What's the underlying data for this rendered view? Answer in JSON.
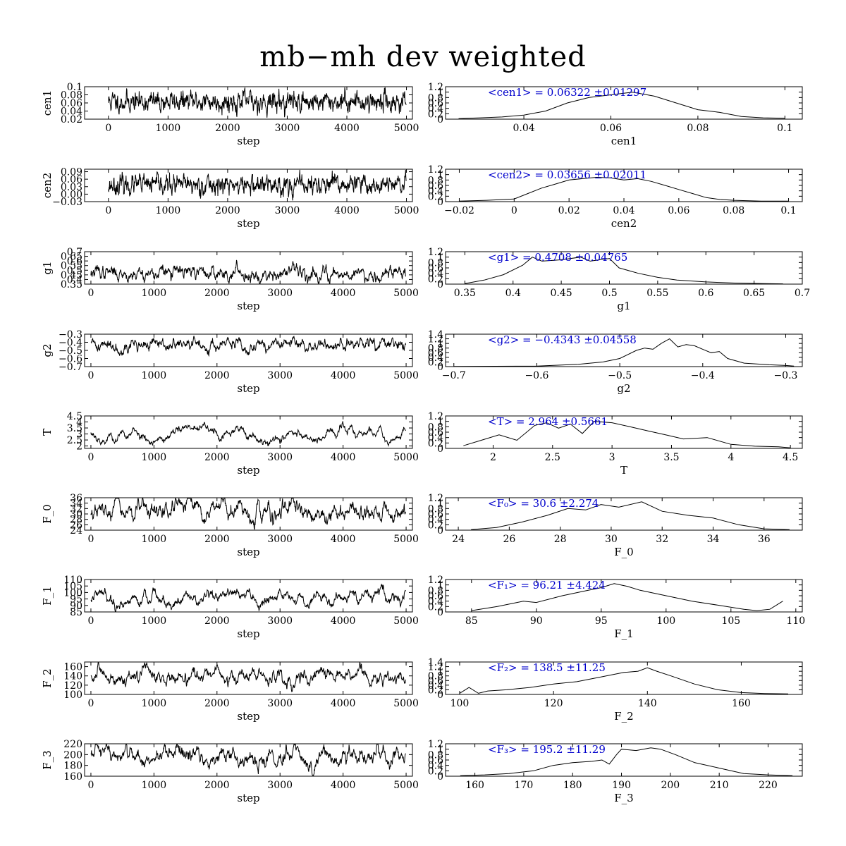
{
  "title": "mb−mh dev weighted",
  "colors": {
    "axes": "#000000",
    "annotation": "#0000cc",
    "line": "#000000"
  },
  "chart_data": [
    {
      "type": "line",
      "panel": "trace",
      "param": "cen1",
      "ylabel": "cen1",
      "xlabel": "step",
      "xlim": [
        -400,
        5100
      ],
      "xticks": [
        0,
        1000,
        2000,
        3000,
        4000,
        5000
      ],
      "ylim": [
        0.02,
        0.1
      ],
      "yticks": [
        0.02,
        0.04,
        0.06,
        0.08,
        0.1
      ],
      "yticklabels": [
        "0.02",
        "0.04",
        "0.06",
        "0.08",
        "0.1"
      ],
      "series": [
        {
          "n": 5000,
          "mean": 0.06322,
          "sigma": 0.013,
          "ar": 0.6,
          "seed": 11
        }
      ]
    },
    {
      "type": "line",
      "panel": "hist",
      "param": "cen1",
      "xlabel": "cen1",
      "xlim": [
        0.022,
        0.104
      ],
      "xticks": [
        0.04,
        0.06,
        0.08,
        0.1
      ],
      "xticklabels": [
        "0.04",
        "0.06",
        "0.08",
        "0.1"
      ],
      "ylim": [
        0,
        1.2
      ],
      "yticks": [
        0,
        0.2,
        0.4,
        0.6,
        0.8,
        1,
        1.2
      ],
      "yticklabels": [
        "0",
        "0.2",
        "0.4",
        "0.6",
        "0.8",
        "1",
        "1.2"
      ],
      "annotation": "<cen1> = 0.06322 ±0.01297",
      "x": [
        0.025,
        0.03,
        0.035,
        0.04,
        0.045,
        0.05,
        0.055,
        0.06,
        0.065,
        0.07,
        0.075,
        0.08,
        0.085,
        0.09,
        0.095,
        0.1
      ],
      "y": [
        0.02,
        0.05,
        0.08,
        0.15,
        0.3,
        0.6,
        0.8,
        0.9,
        1.0,
        0.85,
        0.6,
        0.35,
        0.25,
        0.1,
        0.05,
        0.03
      ]
    },
    {
      "type": "line",
      "panel": "trace",
      "param": "cen2",
      "ylabel": "cen2",
      "xlabel": "step",
      "xlim": [
        -400,
        5100
      ],
      "xticks": [
        0,
        1000,
        2000,
        3000,
        4000,
        5000
      ],
      "ylim": [
        -0.03,
        0.1
      ],
      "yticks": [
        -0.03,
        0,
        0.03,
        0.06,
        0.09
      ],
      "yticklabels": [
        "−0.03",
        "0.00",
        "0.03",
        "0.06",
        "0.09"
      ],
      "series": [
        {
          "n": 5000,
          "mean": 0.03656,
          "sigma": 0.02,
          "ar": 0.6,
          "seed": 23
        }
      ]
    },
    {
      "type": "line",
      "panel": "hist",
      "param": "cen2",
      "xlabel": "cen2",
      "xlim": [
        -0.025,
        0.105
      ],
      "xticks": [
        -0.02,
        0,
        0.02,
        0.04,
        0.06,
        0.08,
        0.1
      ],
      "xticklabels": [
        "−0.02",
        "0",
        "0.02",
        "0.04",
        "0.06",
        "0.08",
        "0.1"
      ],
      "ylim": [
        0,
        1.2
      ],
      "yticks": [
        0,
        0.2,
        0.4,
        0.6,
        0.8,
        1,
        1.2
      ],
      "yticklabels": [
        "0",
        "0.2",
        "0.4",
        "0.6",
        "0.8",
        "1",
        "1.2"
      ],
      "annotation": "<cen2> = 0.03656 ±0.02011",
      "x": [
        -0.02,
        -0.01,
        0.0,
        0.005,
        0.01,
        0.015,
        0.02,
        0.025,
        0.03,
        0.035,
        0.04,
        0.045,
        0.05,
        0.055,
        0.06,
        0.065,
        0.07,
        0.075,
        0.08,
        0.09,
        0.1
      ],
      "y": [
        0.02,
        0.05,
        0.1,
        0.3,
        0.5,
        0.65,
        0.8,
        0.85,
        0.9,
        0.88,
        0.8,
        0.85,
        0.75,
        0.6,
        0.45,
        0.3,
        0.15,
        0.08,
        0.05,
        0.02,
        0.02
      ]
    },
    {
      "type": "line",
      "panel": "trace",
      "param": "g1",
      "ylabel": "g1",
      "xlabel": "step",
      "xlim": [
        -100,
        5100
      ],
      "xticks": [
        0,
        1000,
        2000,
        3000,
        4000,
        5000
      ],
      "ylim": [
        0.35,
        0.7
      ],
      "yticks": [
        0.35,
        0.4,
        0.45,
        0.5,
        0.55,
        0.6,
        0.65,
        0.7
      ],
      "yticklabels": [
        "0.35",
        "0.4",
        "0.45",
        "0.5",
        "0.55",
        "0.6",
        "0.65",
        "0.7"
      ],
      "series": [
        {
          "n": 5000,
          "mean": 0.4708,
          "sigma": 0.045,
          "ar": 0.85,
          "seed": 37
        }
      ]
    },
    {
      "type": "line",
      "panel": "hist",
      "param": "g1",
      "xlabel": "g1",
      "xlim": [
        0.33,
        0.7
      ],
      "xticks": [
        0.35,
        0.4,
        0.45,
        0.5,
        0.55,
        0.6,
        0.65,
        0.7
      ],
      "xticklabels": [
        "0.35",
        "0.4",
        "0.45",
        "0.5",
        "0.55",
        "0.6",
        "0.65",
        "0.7"
      ],
      "ylim": [
        0,
        1.2
      ],
      "yticks": [
        0,
        0.2,
        0.4,
        0.6,
        0.8,
        1,
        1.2
      ],
      "yticklabels": [
        "0",
        "0.2",
        "0.4",
        "0.6",
        "0.8",
        "1",
        "1.2"
      ],
      "annotation": "<g1> = 0.4708 ±0.04765",
      "x": [
        0.35,
        0.37,
        0.39,
        0.41,
        0.42,
        0.43,
        0.45,
        0.47,
        0.48,
        0.5,
        0.51,
        0.53,
        0.55,
        0.57,
        0.6,
        0.63,
        0.66,
        0.68
      ],
      "y": [
        0.02,
        0.15,
        0.35,
        0.7,
        1.0,
        0.85,
        0.9,
        1.0,
        0.85,
        0.95,
        0.6,
        0.4,
        0.25,
        0.15,
        0.08,
        0.04,
        0.02,
        0.01
      ]
    },
    {
      "type": "line",
      "panel": "trace",
      "param": "g2",
      "ylabel": "g2",
      "xlabel": "step",
      "xlim": [
        -100,
        5100
      ],
      "xticks": [
        0,
        1000,
        2000,
        3000,
        4000,
        5000
      ],
      "ylim": [
        -0.7,
        -0.3
      ],
      "yticks": [
        -0.7,
        -0.6,
        -0.5,
        -0.4,
        -0.3
      ],
      "yticklabels": [
        "−0.7",
        "−0.6",
        "−0.5",
        "−0.4",
        "−0.3"
      ],
      "series": [
        {
          "n": 5000,
          "mean": -0.4343,
          "sigma": 0.045,
          "ar": 0.85,
          "seed": 41
        }
      ]
    },
    {
      "type": "line",
      "panel": "hist",
      "param": "g2",
      "xlabel": "g2",
      "xlim": [
        -0.71,
        -0.28
      ],
      "xticks": [
        -0.7,
        -0.6,
        -0.5,
        -0.4,
        -0.3
      ],
      "xticklabels": [
        "−0.7",
        "−0.6",
        "−0.5",
        "−0.4",
        "−0.3"
      ],
      "ylim": [
        0,
        1.4
      ],
      "yticks": [
        0,
        0.2,
        0.4,
        0.6,
        0.8,
        1,
        1.2,
        1.4
      ],
      "yticklabels": [
        "0",
        "0.2",
        "0.4",
        "0.6",
        "0.8",
        "1",
        "1.2",
        "1.4"
      ],
      "annotation": "<g2> = −0.4343 ±0.04558",
      "x": [
        -0.7,
        -0.6,
        -0.55,
        -0.52,
        -0.5,
        -0.48,
        -0.47,
        -0.46,
        -0.45,
        -0.44,
        -0.43,
        -0.42,
        -0.41,
        -0.4,
        -0.39,
        -0.38,
        -0.37,
        -0.35,
        -0.32,
        -0.3,
        -0.29
      ],
      "y": [
        0.01,
        0.02,
        0.1,
        0.2,
        0.35,
        0.7,
        0.8,
        0.75,
        1.0,
        1.2,
        0.85,
        0.95,
        0.9,
        0.75,
        0.6,
        0.65,
        0.35,
        0.15,
        0.08,
        0.05,
        0.02
      ]
    },
    {
      "type": "line",
      "panel": "trace",
      "param": "T",
      "ylabel": "T",
      "xlabel": "step",
      "xlim": [
        -100,
        5100
      ],
      "xticks": [
        0,
        1000,
        2000,
        3000,
        4000,
        5000
      ],
      "ylim": [
        1.8,
        4.5
      ],
      "yticks": [
        2,
        2.5,
        3,
        3.5,
        4,
        4.5
      ],
      "yticklabels": [
        "2",
        "2.5",
        "3",
        "3.5",
        "4",
        "4.5"
      ],
      "series": [
        {
          "n": 5000,
          "mean": 2.964,
          "sigma": 0.45,
          "ar": 0.97,
          "seed": 53
        }
      ]
    },
    {
      "type": "line",
      "panel": "hist",
      "param": "T",
      "xlabel": "T",
      "xlim": [
        1.6,
        4.6
      ],
      "xticks": [
        2,
        2.5,
        3,
        3.5,
        4,
        4.5
      ],
      "xticklabels": [
        "2",
        "2.5",
        "3",
        "3.5",
        "4",
        "4.5"
      ],
      "ylim": [
        0,
        1.2
      ],
      "yticks": [
        0,
        0.2,
        0.4,
        0.6,
        0.8,
        1,
        1.2
      ],
      "yticklabels": [
        "0",
        "0.2",
        "0.4",
        "0.6",
        "0.8",
        "1",
        "1.2"
      ],
      "annotation": "<T> = 2.964 ±0.5661",
      "x": [
        1.75,
        1.9,
        2.05,
        2.2,
        2.35,
        2.45,
        2.55,
        2.65,
        2.75,
        2.85,
        3.0,
        3.15,
        3.3,
        3.45,
        3.6,
        3.8,
        4.0,
        4.2,
        4.4,
        4.5
      ],
      "y": [
        0.1,
        0.3,
        0.5,
        0.3,
        0.85,
        0.95,
        0.75,
        0.9,
        0.55,
        1.0,
        0.95,
        0.8,
        0.65,
        0.5,
        0.35,
        0.4,
        0.15,
        0.08,
        0.06,
        0.02
      ]
    },
    {
      "type": "line",
      "panel": "trace",
      "param": "F_0",
      "ylabel": "F_0",
      "xlabel": "step",
      "xlim": [
        -100,
        5100
      ],
      "xticks": [
        0,
        1000,
        2000,
        3000,
        4000,
        5000
      ],
      "ylim": [
        24,
        36
      ],
      "yticks": [
        24,
        26,
        28,
        30,
        32,
        34,
        36
      ],
      "yticklabels": [
        "24",
        "26",
        "28",
        "30",
        "32",
        "34",
        "36"
      ],
      "series": [
        {
          "n": 5000,
          "mean": 30.6,
          "sigma": 2.2,
          "ar": 0.9,
          "seed": 67
        }
      ]
    },
    {
      "type": "line",
      "panel": "hist",
      "param": "F_0",
      "xlabel": "F_0",
      "xlim": [
        23.5,
        37.5
      ],
      "xticks": [
        24,
        26,
        28,
        30,
        32,
        34,
        36
      ],
      "xticklabels": [
        "24",
        "26",
        "28",
        "30",
        "32",
        "34",
        "36"
      ],
      "ylim": [
        0,
        1.2
      ],
      "yticks": [
        0,
        0.2,
        0.4,
        0.6,
        0.8,
        1,
        1.2
      ],
      "yticklabels": [
        "0",
        "0.2",
        "0.4",
        "0.6",
        "0.8",
        "1",
        "1.2"
      ],
      "annotation": "<F₀> = 30.6 ±2.274",
      "x": [
        24.5,
        25.5,
        26.5,
        27.5,
        28.3,
        29.0,
        29.6,
        30.3,
        31.2,
        32.0,
        33.0,
        34.0,
        35.0,
        36.0,
        37.0
      ],
      "y": [
        0.02,
        0.1,
        0.3,
        0.55,
        0.8,
        0.75,
        0.95,
        0.85,
        1.05,
        0.7,
        0.55,
        0.45,
        0.2,
        0.05,
        0.02
      ]
    },
    {
      "type": "line",
      "panel": "trace",
      "param": "F_1",
      "ylabel": "F_1",
      "xlabel": "step",
      "xlim": [
        -100,
        5100
      ],
      "xticks": [
        0,
        1000,
        2000,
        3000,
        4000,
        5000
      ],
      "ylim": [
        85,
        110
      ],
      "yticks": [
        85,
        90,
        95,
        100,
        105,
        110
      ],
      "yticklabels": [
        "85",
        "90",
        "95",
        "100",
        "105",
        "110"
      ],
      "series": [
        {
          "n": 5000,
          "mean": 96.21,
          "sigma": 4.2,
          "ar": 0.95,
          "seed": 79
        }
      ]
    },
    {
      "type": "line",
      "panel": "hist",
      "param": "F_1",
      "xlabel": "F_1",
      "xlim": [
        83,
        110.5
      ],
      "xticks": [
        85,
        90,
        95,
        100,
        105,
        110
      ],
      "xticklabels": [
        "85",
        "90",
        "95",
        "100",
        "105",
        "110"
      ],
      "ylim": [
        0,
        1.2
      ],
      "yticks": [
        0,
        0.2,
        0.4,
        0.6,
        0.8,
        1,
        1.2
      ],
      "yticklabels": [
        "0",
        "0.2",
        "0.4",
        "0.6",
        "0.8",
        "1",
        "1.2"
      ],
      "annotation": "<F₁> = 96.21 ±4.424",
      "x": [
        85,
        87,
        89,
        90,
        92,
        94,
        95,
        96,
        97,
        98,
        100,
        102,
        104,
        106,
        107,
        108,
        109
      ],
      "y": [
        0.05,
        0.2,
        0.4,
        0.35,
        0.6,
        0.8,
        0.9,
        1.05,
        0.95,
        0.8,
        0.6,
        0.4,
        0.25,
        0.1,
        0.05,
        0.1,
        0.4
      ]
    },
    {
      "type": "line",
      "panel": "trace",
      "param": "F_2",
      "ylabel": "F_2",
      "xlabel": "step",
      "xlim": [
        -100,
        5100
      ],
      "xticks": [
        0,
        1000,
        2000,
        3000,
        4000,
        5000
      ],
      "ylim": [
        100,
        170
      ],
      "yticks": [
        100,
        120,
        140,
        160
      ],
      "yticklabels": [
        "100",
        "120",
        "140",
        "160"
      ],
      "series": [
        {
          "n": 5000,
          "mean": 138.5,
          "sigma": 10.5,
          "ar": 0.9,
          "seed": 83
        }
      ]
    },
    {
      "type": "line",
      "panel": "hist",
      "param": "F_2",
      "xlabel": "F_2",
      "xlim": [
        97,
        173
      ],
      "xticks": [
        100,
        120,
        140,
        160
      ],
      "xticklabels": [
        "100",
        "120",
        "140",
        "160"
      ],
      "ylim": [
        0,
        1.4
      ],
      "yticks": [
        0,
        0.2,
        0.4,
        0.6,
        0.8,
        1,
        1.2,
        1.4
      ],
      "yticklabels": [
        "0",
        "0.2",
        "0.4",
        "0.6",
        "0.8",
        "1",
        "1.2",
        "1.4"
      ],
      "annotation": "<F₂> = 138.5 ±11.25",
      "x": [
        100,
        102,
        104,
        106,
        110,
        115,
        120,
        125,
        130,
        135,
        138,
        140,
        142,
        145,
        150,
        155,
        160,
        165,
        170
      ],
      "y": [
        0.05,
        0.3,
        0.05,
        0.15,
        0.2,
        0.3,
        0.45,
        0.55,
        0.75,
        0.95,
        1.0,
        1.15,
        1.0,
        0.8,
        0.45,
        0.2,
        0.08,
        0.04,
        0.02
      ]
    },
    {
      "type": "line",
      "panel": "trace",
      "param": "F_3",
      "ylabel": "F_3",
      "xlabel": "step",
      "xlim": [
        -100,
        5100
      ],
      "xticks": [
        0,
        1000,
        2000,
        3000,
        4000,
        5000
      ],
      "ylim": [
        160,
        220
      ],
      "yticks": [
        160,
        180,
        200,
        220
      ],
      "yticklabels": [
        "160",
        "180",
        "200",
        "220"
      ],
      "series": [
        {
          "n": 5000,
          "mean": 195.2,
          "sigma": 11,
          "ar": 0.9,
          "seed": 97
        }
      ]
    },
    {
      "type": "line",
      "panel": "hist",
      "param": "F_3",
      "xlabel": "F_3",
      "xlim": [
        154,
        227
      ],
      "xticks": [
        160,
        170,
        180,
        190,
        200,
        210,
        220
      ],
      "xticklabels": [
        "160",
        "170",
        "180",
        "190",
        "200",
        "210",
        "220"
      ],
      "ylim": [
        0,
        1.2
      ],
      "yticks": [
        0,
        0.2,
        0.4,
        0.6,
        0.8,
        1,
        1.2
      ],
      "yticklabels": [
        "0",
        "0.2",
        "0.4",
        "0.6",
        "0.8",
        "1",
        "1.2"
      ],
      "annotation": "<F₃> = 195.2 ±11.29",
      "x": [
        157,
        162,
        167,
        172,
        176,
        180,
        184,
        186,
        187.5,
        189,
        190,
        193,
        196,
        198,
        201,
        205,
        210,
        215,
        220,
        225
      ],
      "y": [
        0.02,
        0.05,
        0.1,
        0.2,
        0.4,
        0.5,
        0.55,
        0.6,
        0.45,
        0.8,
        1.0,
        0.95,
        1.05,
        1.0,
        0.8,
        0.5,
        0.3,
        0.1,
        0.05,
        0.02
      ]
    }
  ]
}
